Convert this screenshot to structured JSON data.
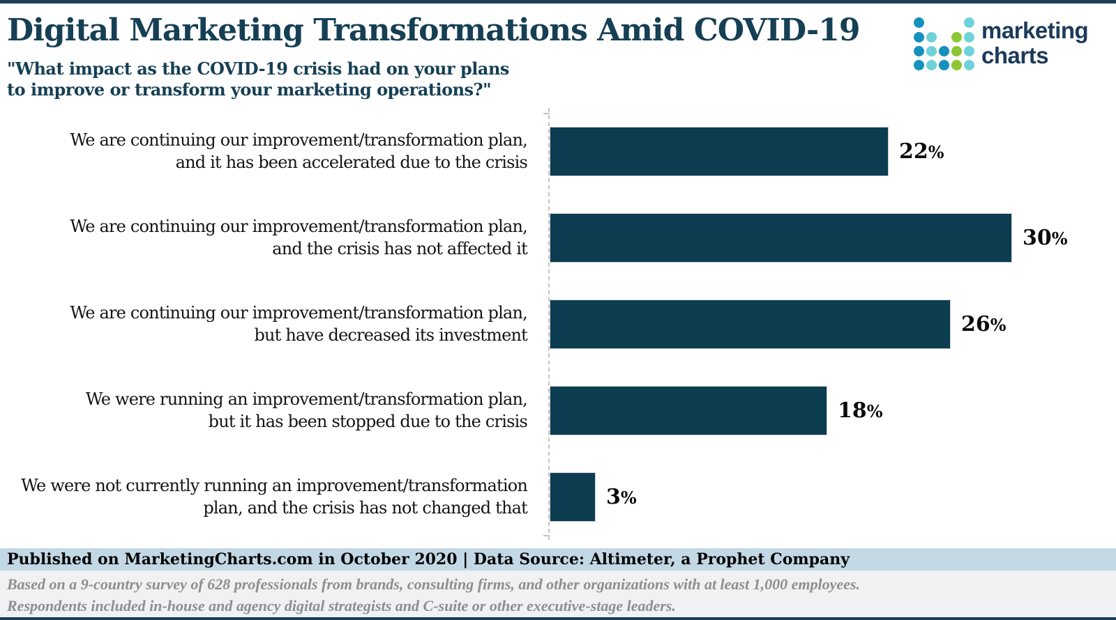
{
  "header": {
    "title": "Digital Marketing Transformations Amid COVID-19",
    "subtitle_lines": [
      "\"What impact as the COVID-19 crisis had on your plans",
      "to improve or transform your marketing operations?\""
    ],
    "logo": {
      "text_lines": [
        "marketing",
        "charts"
      ],
      "dot_colors": {
        "b": "#1591bd",
        "t": "#6fd2da",
        "g": "#8cc733"
      },
      "dot_grid": [
        [
          "b",
          "",
          "",
          "",
          "t"
        ],
        [
          "b",
          "t",
          "",
          "g",
          "t"
        ],
        [
          "b",
          "t",
          "b",
          "g",
          "t"
        ],
        [
          "b",
          "t",
          "b",
          "g",
          "t"
        ]
      ]
    }
  },
  "chart_data": {
    "type": "bar",
    "orientation": "horizontal",
    "title": "Digital Marketing Transformations Amid COVID-19",
    "xlabel": "",
    "ylabel": "",
    "xlim": [
      0,
      32
    ],
    "grid": false,
    "legend": false,
    "bar_color": "#0c3c50",
    "categories": [
      "We are continuing our improvement/transformation plan, and it has been accelerated due to the crisis",
      "We are continuing our improvement/transformation plan, and the crisis has not affected it",
      "We are continuing our improvement/transformation plan, but have decreased its investment",
      "We were running an improvement/transformation plan, but it has been stopped due to the crisis",
      "We were not currently running an improvement/transformation plan, and the crisis has not changed that"
    ],
    "categories_lines": [
      [
        "We are continuing our improvement/transformation plan,",
        "and it has been accelerated due to the crisis"
      ],
      [
        "We are continuing our improvement/transformation plan,",
        "and the crisis has not affected it"
      ],
      [
        "We are continuing our improvement/transformation plan,",
        "but have decreased its investment"
      ],
      [
        "We were running an improvement/transformation plan,",
        "but it has been stopped due to the crisis"
      ],
      [
        "We were not currently running an improvement/transformation",
        "plan, and the crisis has not changed that"
      ]
    ],
    "values": [
      22,
      30,
      26,
      18,
      3
    ],
    "value_labels": [
      "22%",
      "30%",
      "26%",
      "18%",
      "3%"
    ],
    "value_suffix": "%"
  },
  "footer": {
    "published": "Published on MarketingCharts.com in October 2020 | Data Source: Altimeter, a Prophet Company",
    "notes": [
      "Based on a 9-country survey of 628 professionals from brands, consulting firms, and other organizations with at least 1,000 employees.",
      "Respondents included in-house and agency digital strategists and C-suite or other executive-stage leaders."
    ]
  },
  "colors": {
    "frame_navy": "#1d3e57",
    "title_text": "#153f54",
    "bar_fill": "#0c3c50",
    "axis_dash": "#c4c4c4",
    "footer_blue_bg": "#c3d8e5",
    "footer_gray_bg": "#f0f1f2",
    "footer_note_text": "#8c8e91",
    "logo_text": "#1c3a5a"
  }
}
